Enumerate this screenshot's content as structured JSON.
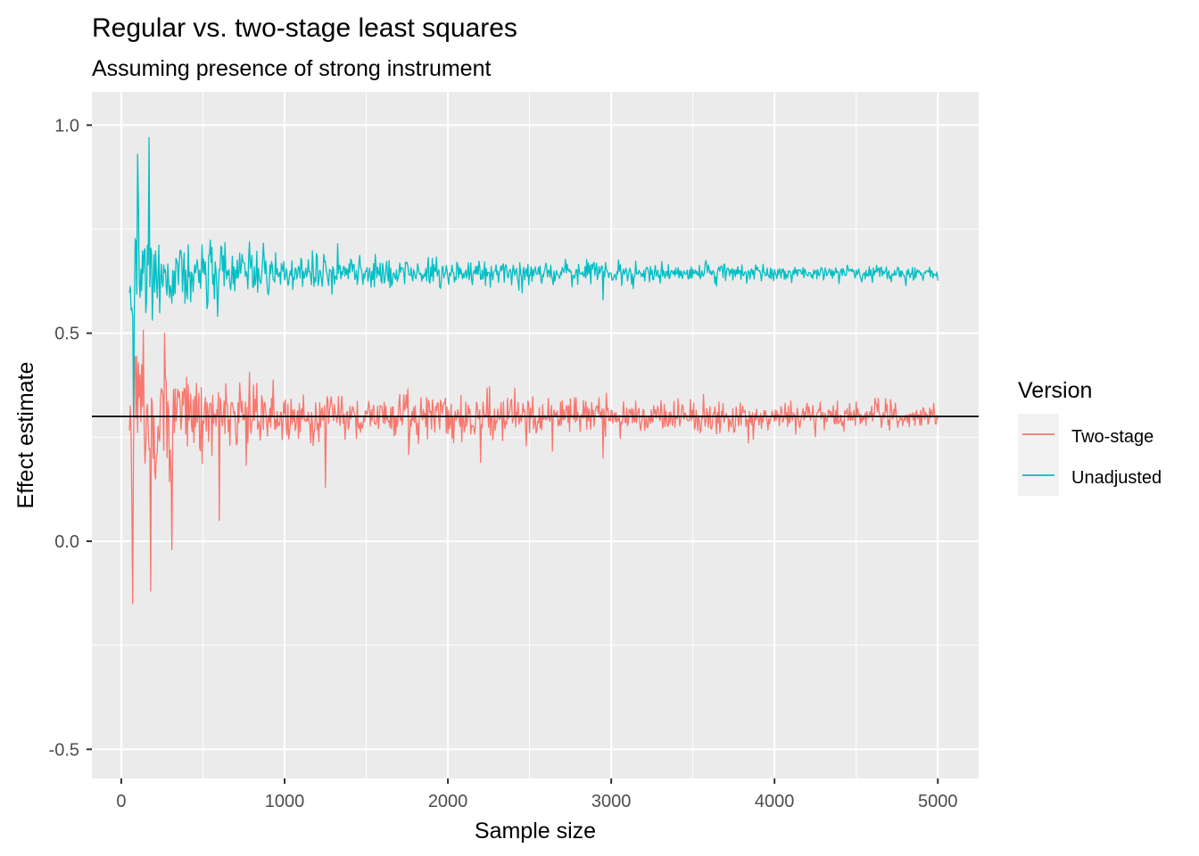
{
  "chart_data": {
    "type": "line",
    "title": "Regular vs. two-stage least squares",
    "subtitle": "Assuming presence of strong instrument",
    "xlabel": "Sample size",
    "ylabel": "Effect estimate",
    "xlim": [
      -180,
      5250
    ],
    "ylim": [
      -0.57,
      1.08
    ],
    "x_ticks": [
      0,
      1000,
      2000,
      3000,
      4000,
      5000
    ],
    "x_tick_labels": [
      "0",
      "1000",
      "2000",
      "3000",
      "4000",
      "5000"
    ],
    "y_ticks": [
      -0.5,
      0.0,
      0.5,
      1.0
    ],
    "y_tick_labels": [
      "-0.5",
      "0.0",
      "0.5",
      "1.0"
    ],
    "x_range": [
      50,
      5000
    ],
    "x_step": 5,
    "reference_line": 0.3,
    "grid": true,
    "legend": {
      "title": "Version",
      "position": "right"
    },
    "series": [
      {
        "name": "Two-stage",
        "color": "#F8766D",
        "center": 0.3,
        "envelope": [
          [
            100,
            0.25
          ],
          [
            250,
            0.17
          ],
          [
            500,
            0.12
          ],
          [
            1000,
            0.08
          ],
          [
            2000,
            0.06
          ],
          [
            3000,
            0.05
          ],
          [
            4000,
            0.045
          ],
          [
            5000,
            0.04
          ]
        ],
        "extremes": [
          [
            70,
            -0.15
          ],
          [
            180,
            -0.12
          ],
          [
            310,
            -0.02
          ],
          [
            600,
            0.05
          ],
          [
            1250,
            0.13
          ],
          [
            2200,
            0.19
          ],
          [
            2950,
            0.2
          ],
          [
            265,
            0.5
          ]
        ]
      },
      {
        "name": "Unadjusted",
        "color": "#00BFC4",
        "center": 0.645,
        "envelope": [
          [
            100,
            0.17
          ],
          [
            250,
            0.11
          ],
          [
            500,
            0.08
          ],
          [
            1000,
            0.06
          ],
          [
            2000,
            0.04
          ],
          [
            3000,
            0.03
          ],
          [
            4000,
            0.025
          ],
          [
            5000,
            0.02
          ]
        ],
        "extremes": [
          [
            75,
            0.3
          ],
          [
            170,
            0.97
          ],
          [
            100,
            0.93
          ],
          [
            590,
            0.54
          ],
          [
            2950,
            0.58
          ],
          [
            3830,
            0.62
          ]
        ]
      }
    ]
  }
}
